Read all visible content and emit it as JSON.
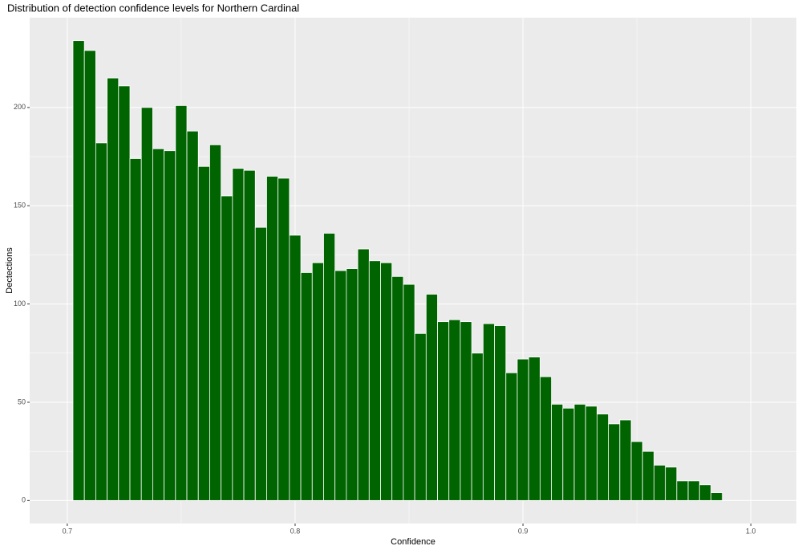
{
  "chart_data": {
    "type": "histogram",
    "title": "Distribution of detection confidence levels for Northern Cardinal",
    "x_label": "Confidence",
    "y_label": "Dectections",
    "color": "#006400",
    "bins": [
      0.7025,
      0.7075,
      0.7125,
      0.7175,
      0.7225,
      0.7275,
      0.7325,
      0.7375,
      0.7425,
      0.7475,
      0.7525,
      0.7575,
      0.7625,
      0.7675,
      0.7725,
      0.7775,
      0.7825,
      0.7875,
      0.7925,
      0.7975,
      0.8025,
      0.8075,
      0.8125,
      0.8175,
      0.8225,
      0.8275,
      0.8325,
      0.8375,
      0.8425,
      0.8475,
      0.8525,
      0.8575,
      0.8625,
      0.8675,
      0.8725,
      0.8775,
      0.8825,
      0.8875,
      0.8925,
      0.8975,
      0.9025,
      0.9075,
      0.9125,
      0.9175,
      0.9225,
      0.9275,
      0.9325,
      0.9375,
      0.9425,
      0.9475,
      0.9525,
      0.9575,
      0.9625,
      0.9675,
      0.9725,
      0.9775,
      0.9825,
      0.9875
    ],
    "values": [
      234,
      229,
      182,
      215,
      211,
      174,
      200,
      179,
      178,
      201,
      188,
      170,
      181,
      155,
      169,
      168,
      139,
      165,
      164,
      135,
      116,
      121,
      136,
      117,
      118,
      128,
      122,
      121,
      114,
      110,
      85,
      105,
      91,
      92,
      91,
      75,
      90,
      89,
      65,
      72,
      73,
      63,
      49,
      47,
      49,
      48,
      44,
      39,
      41,
      30,
      25,
      18,
      17,
      10,
      10,
      8,
      4
    ],
    "xlim": [
      0.6835,
      1.02
    ],
    "ylim": [
      -11.7,
      245.7
    ],
    "xticks": [
      0.7,
      0.8,
      0.9,
      {
        "value": 1,
        "label": "1.0"
      }
    ],
    "yticks": [
      0,
      50,
      100,
      150,
      200
    ],
    "grid": true
  }
}
